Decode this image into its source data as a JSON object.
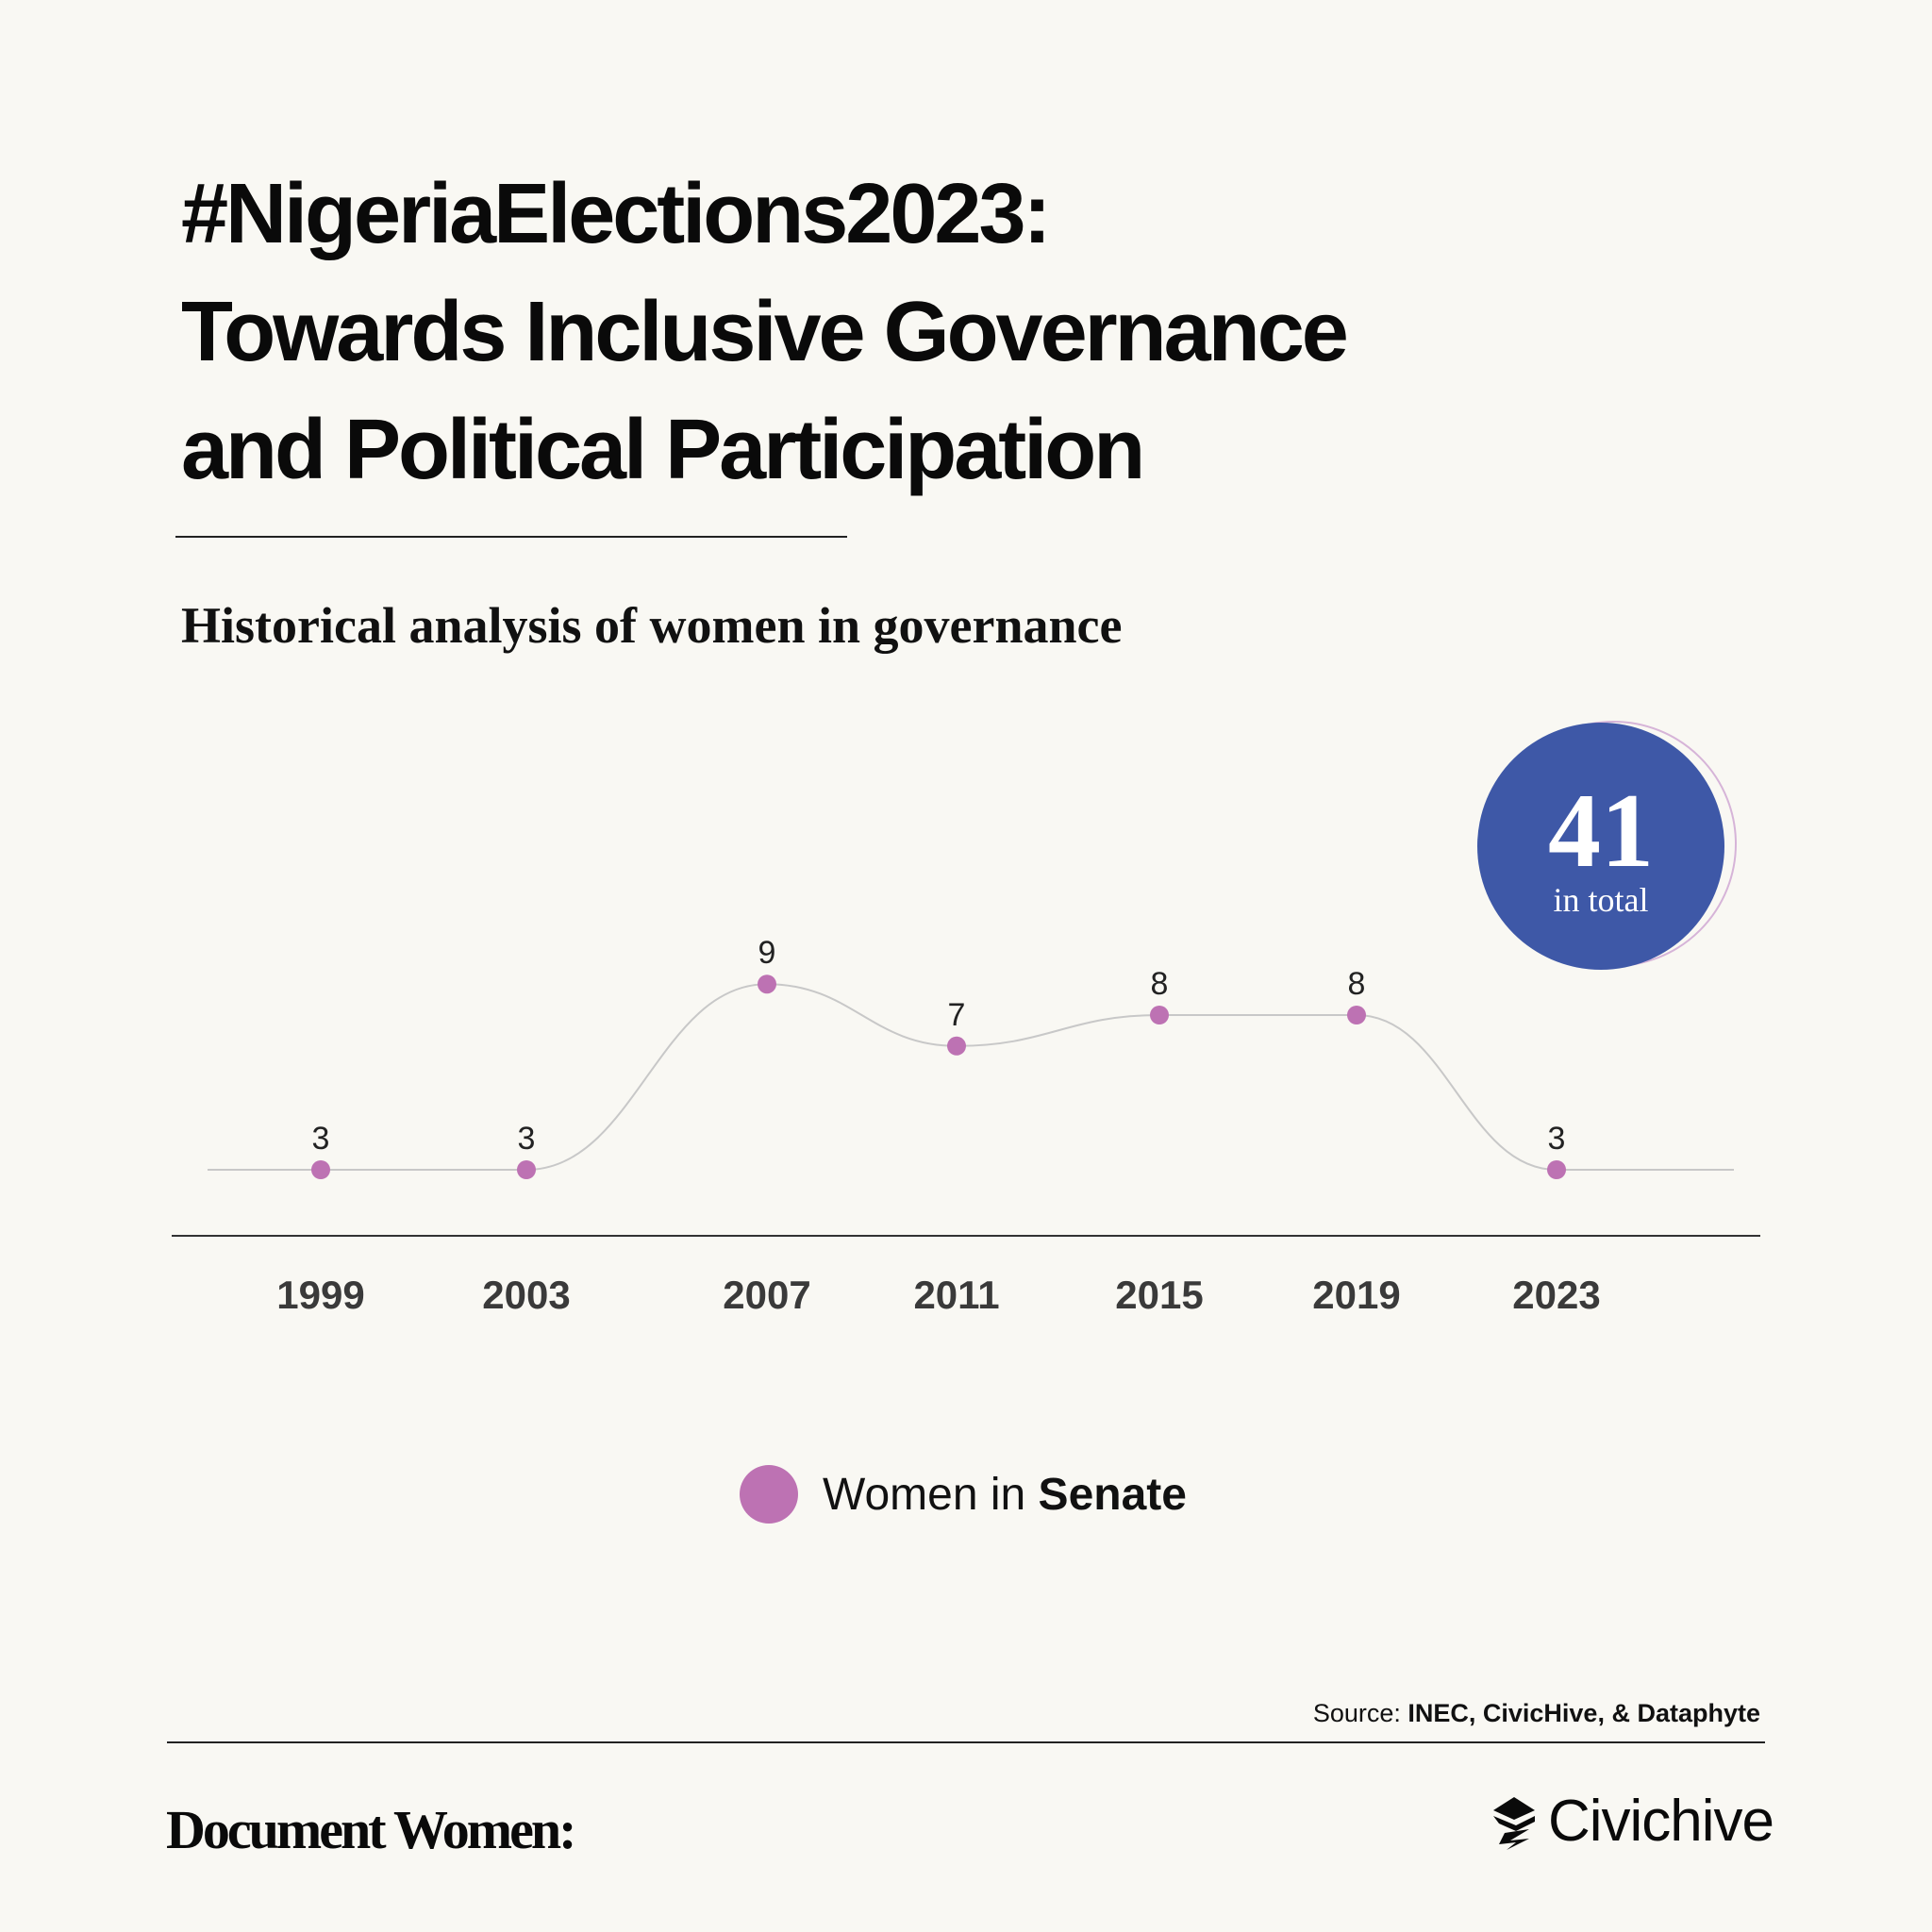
{
  "header": {
    "title_lines": [
      "#NigeriaElections2023:",
      "Towards Inclusive Governance",
      "and Political Participation"
    ],
    "subtitle": "Historical analysis of women in governance"
  },
  "chart_data": {
    "type": "line",
    "x": [
      "1999",
      "2003",
      "2007",
      "2011",
      "2015",
      "2019",
      "2023"
    ],
    "series": [
      {
        "name": "Women in Senate",
        "values": [
          3,
          3,
          9,
          7,
          8,
          8,
          3
        ],
        "color": "#bd72b3"
      }
    ],
    "title": "Historical analysis of women in governance",
    "xlabel": "",
    "ylabel": "",
    "ylim": [
      0,
      10
    ],
    "grid": false,
    "smooth": true,
    "data_labels": true,
    "line_color": "#c8c8c8",
    "legend": "bottom-center"
  },
  "total": {
    "value": "41",
    "label": "in total",
    "color": "#3e58a7"
  },
  "legend": {
    "prefix": "Women in ",
    "bold": "Senate"
  },
  "footer": {
    "source_prefix": "Source: ",
    "source_bold": "INEC, CivicHive, & Dataphyte",
    "brand_left": "Document Women:",
    "brand_right": "Civichive",
    "brand_right_icon": "civichive-logo-icon"
  }
}
